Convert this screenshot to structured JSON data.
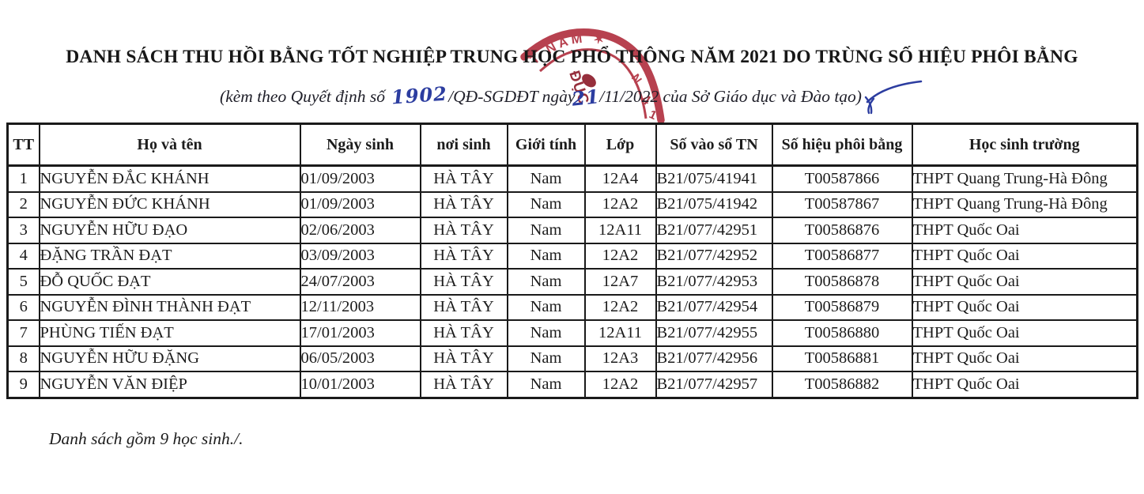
{
  "document": {
    "title": "DANH SÁCH THU HỒI BẰNG TỐT NGHIỆP TRUNG HỌC PHỔ THÔNG NĂM 2021 DO TRÙNG SỐ HIỆU PHÔI BẰNG",
    "subtitle": {
      "prefix": "(kèm theo Quyết định số",
      "handwritten_decision_number": "1902",
      "middle": "/QĐ-SGDĐT ngày",
      "handwritten_day": "21",
      "suffix": "/11/2022 của Sở Giáo dục và Đào tạo)"
    },
    "footer_note": "Danh sách gồm 9 học sinh./.",
    "stamp": {
      "arc_text": "T NAM ✶",
      "inner_text": "ĐỤC",
      "color": "#b13141"
    }
  },
  "table": {
    "column_keys": [
      "tt",
      "ho-va-ten",
      "ngay-sinh",
      "noi-sinh",
      "gioi-tinh",
      "lop",
      "so-vao-so-tn",
      "so-hieu-phoi-bang",
      "hoc-sinh-truong"
    ],
    "headers": [
      "TT",
      "Họ và tên",
      "Ngày sinh",
      "nơi sinh",
      "Giới tính",
      "Lớp",
      "Số vào sổ TN",
      "Số hiệu phôi bằng",
      "Học sinh trường"
    ],
    "rows": [
      [
        "1",
        "NGUYỄN ĐẮC KHÁNH",
        "01/09/2003",
        "HÀ TÂY",
        "Nam",
        "12A4",
        "B21/075/41941",
        "T00587866",
        "THPT Quang Trung-Hà Đông"
      ],
      [
        "2",
        "NGUYỄN ĐỨC KHÁNH",
        "01/09/2003",
        "HÀ TÂY",
        "Nam",
        "12A2",
        "B21/075/41942",
        "T00587867",
        "THPT Quang Trung-Hà Đông"
      ],
      [
        "3",
        "NGUYỄN HỮU ĐẠO",
        "02/06/2003",
        "HÀ TÂY",
        "Nam",
        "12A11",
        "B21/077/42951",
        "T00586876",
        "THPT Quốc Oai"
      ],
      [
        "4",
        "ĐẶNG TRẦN ĐẠT",
        "03/09/2003",
        "HÀ TÂY",
        "Nam",
        "12A2",
        "B21/077/42952",
        "T00586877",
        "THPT Quốc Oai"
      ],
      [
        "5",
        "ĐỖ QUỐC ĐẠT",
        "24/07/2003",
        "HÀ TÂY",
        "Nam",
        "12A7",
        "B21/077/42953",
        "T00586878",
        "THPT Quốc Oai"
      ],
      [
        "6",
        "NGUYỄN ĐÌNH THÀNH ĐẠT",
        "12/11/2003",
        "HÀ TÂY",
        "Nam",
        "12A2",
        "B21/077/42954",
        "T00586879",
        "THPT Quốc Oai"
      ],
      [
        "7",
        "PHÙNG TIẾN ĐẠT",
        "17/01/2003",
        "HÀ TÂY",
        "Nam",
        "12A11",
        "B21/077/42955",
        "T00586880",
        "THPT Quốc Oai"
      ],
      [
        "8",
        "NGUYỄN HỮU ĐẶNG",
        "06/05/2003",
        "HÀ TÂY",
        "Nam",
        "12A3",
        "B21/077/42956",
        "T00586881",
        "THPT Quốc Oai"
      ],
      [
        "9",
        "NGUYỄN VĂN ĐIỆP",
        "10/01/2003",
        "HÀ TÂY",
        "Nam",
        "12A2",
        "B21/077/42957",
        "T00586882",
        "THPT Quốc Oai"
      ]
    ]
  },
  "colors": {
    "ink": "#1c1c1c",
    "handwriting_blue": "#2c3da0",
    "stamp_red": "#b13141",
    "stamp_dark_red": "#8e1e2c"
  }
}
